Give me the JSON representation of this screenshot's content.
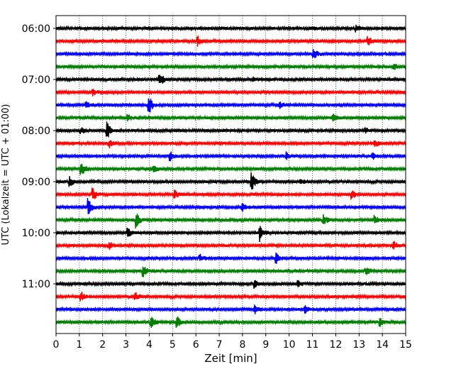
{
  "chart_data": {
    "type": "line",
    "title": "",
    "xlabel": "Zeit  [min]",
    "ylabel": "UTC (Lokalzeit = UTC + 01:00)",
    "xlim": [
      0,
      15
    ],
    "x_ticks": [
      "0",
      "1",
      "2",
      "3",
      "4",
      "5",
      "6",
      "7",
      "8",
      "9",
      "10",
      "11",
      "12",
      "13",
      "14",
      "15"
    ],
    "y_ticks": [
      {
        "label": "06:00",
        "trace": 0
      },
      {
        "label": "07:00",
        "trace": 4
      },
      {
        "label": "08:00",
        "trace": 8
      },
      {
        "label": "09:00",
        "trace": 12
      },
      {
        "label": "10:00",
        "trace": 16
      },
      {
        "label": "11:00",
        "trace": 20
      }
    ],
    "grid": "vertical dotted",
    "trace_colors": [
      "#000000",
      "#ff0000",
      "#0000ff",
      "#008000"
    ],
    "traces": [
      {
        "start": "06:00",
        "events": [
          [
            11.0,
            0.2
          ],
          [
            12.9,
            0.3
          ]
        ]
      },
      {
        "start": "06:15",
        "events": [
          [
            6.1,
            0.45
          ],
          [
            13.4,
            0.4
          ]
        ]
      },
      {
        "start": "06:30",
        "events": [
          [
            11.05,
            0.55
          ]
        ]
      },
      {
        "start": "06:45",
        "events": [
          [
            14.5,
            0.3
          ]
        ]
      },
      {
        "start": "07:00",
        "events": [
          [
            4.45,
            0.75
          ],
          [
            8.5,
            0.2
          ]
        ]
      },
      {
        "start": "07:15",
        "events": [
          [
            1.6,
            0.35
          ]
        ]
      },
      {
        "start": "07:30",
        "events": [
          [
            1.3,
            0.3
          ],
          [
            4.0,
            0.85
          ],
          [
            9.6,
            0.3
          ]
        ]
      },
      {
        "start": "07:45",
        "events": [
          [
            3.1,
            0.3
          ],
          [
            11.9,
            0.35
          ]
        ]
      },
      {
        "start": "08:00",
        "events": [
          [
            2.2,
            0.8
          ],
          [
            1.1,
            0.3
          ],
          [
            13.3,
            0.25
          ]
        ]
      },
      {
        "start": "08:15",
        "events": [
          [
            2.3,
            0.35
          ],
          [
            13.7,
            0.35
          ]
        ]
      },
      {
        "start": "08:30",
        "events": [
          [
            4.9,
            0.5
          ],
          [
            9.9,
            0.4
          ],
          [
            13.6,
            0.3
          ]
        ]
      },
      {
        "start": "08:45",
        "events": [
          [
            1.1,
            0.65
          ],
          [
            4.2,
            0.3
          ]
        ]
      },
      {
        "start": "09:00",
        "events": [
          [
            0.6,
            0.45
          ],
          [
            8.4,
            0.9
          ],
          [
            10.5,
            0.3
          ]
        ]
      },
      {
        "start": "09:15",
        "events": [
          [
            1.6,
            0.6
          ],
          [
            5.1,
            0.4
          ],
          [
            12.7,
            0.4
          ]
        ]
      },
      {
        "start": "09:30",
        "events": [
          [
            1.4,
            0.85
          ],
          [
            8.0,
            0.3
          ]
        ]
      },
      {
        "start": "09:45",
        "events": [
          [
            3.45,
            0.75
          ],
          [
            11.5,
            0.5
          ],
          [
            13.7,
            0.4
          ]
        ]
      },
      {
        "start": "10:00",
        "events": [
          [
            3.1,
            0.4
          ],
          [
            8.75,
            0.8
          ]
        ]
      },
      {
        "start": "10:15",
        "events": [
          [
            2.3,
            0.3
          ],
          [
            14.5,
            0.4
          ]
        ]
      },
      {
        "start": "10:30",
        "events": [
          [
            6.2,
            0.3
          ],
          [
            9.45,
            0.55
          ]
        ]
      },
      {
        "start": "10:45",
        "events": [
          [
            3.75,
            0.6
          ],
          [
            13.3,
            0.45
          ]
        ]
      },
      {
        "start": "11:00",
        "events": [
          [
            8.55,
            0.35
          ],
          [
            10.4,
            0.3
          ]
        ]
      },
      {
        "start": "11:15",
        "events": [
          [
            1.1,
            0.4
          ],
          [
            3.4,
            0.4
          ]
        ]
      },
      {
        "start": "11:30",
        "events": [
          [
            8.55,
            0.4
          ],
          [
            10.7,
            0.35
          ]
        ]
      },
      {
        "start": "11:45",
        "events": [
          [
            4.1,
            0.5
          ],
          [
            5.2,
            0.55
          ],
          [
            13.9,
            0.4
          ]
        ]
      }
    ]
  }
}
